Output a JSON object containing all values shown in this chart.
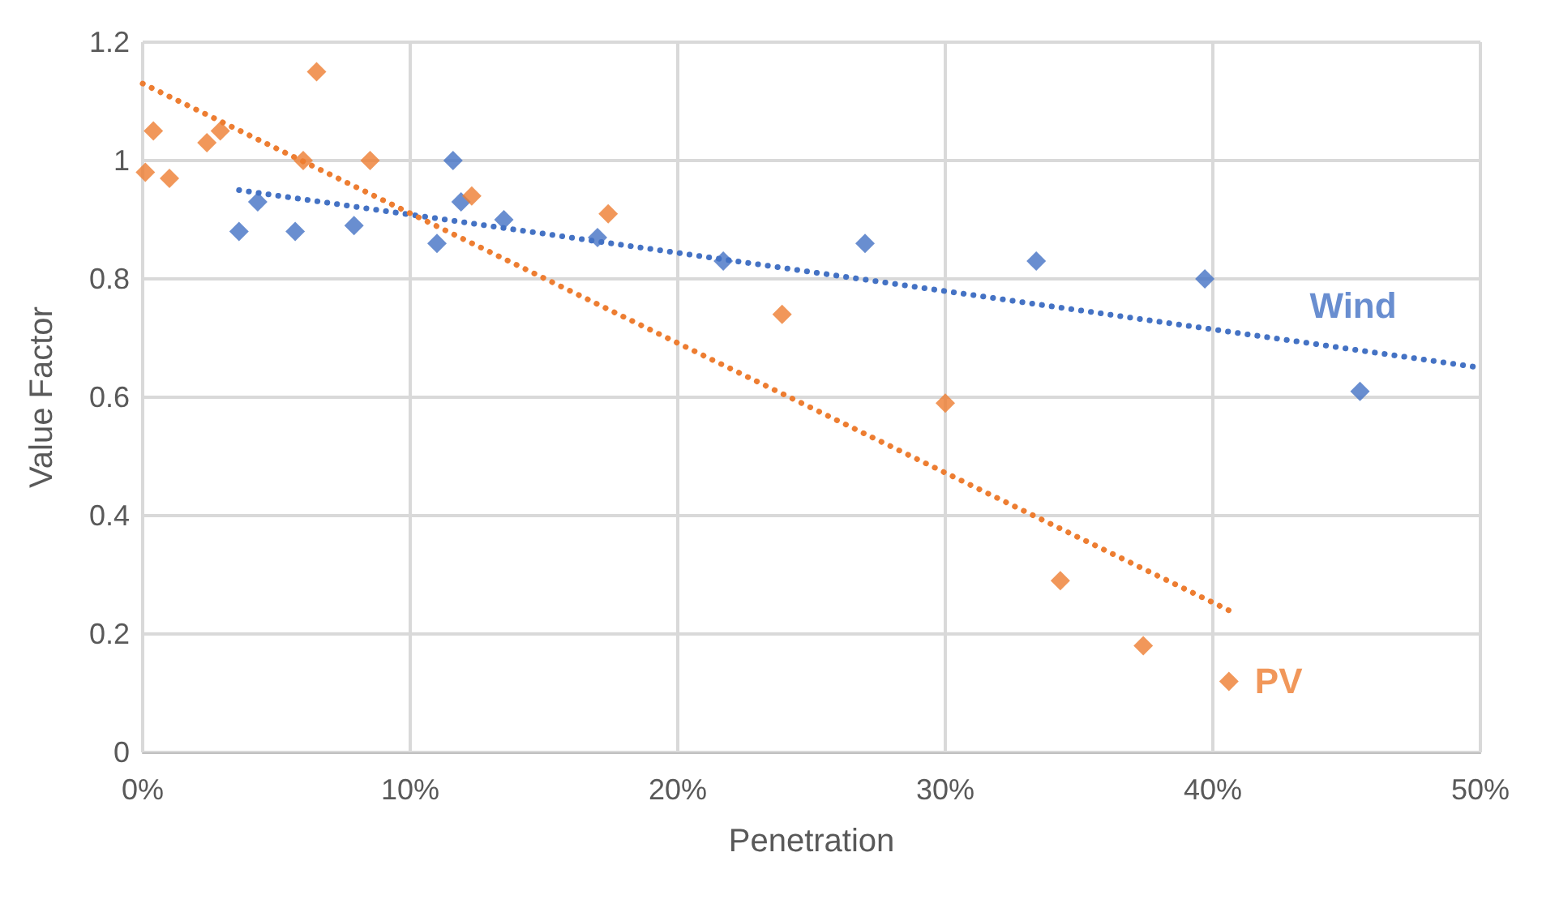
{
  "chart_data": {
    "type": "scatter",
    "xlabel": "Penetration",
    "ylabel": "Value Factor",
    "xlim": [
      0,
      50
    ],
    "ylim": [
      0,
      1.2
    ],
    "xticks": [
      {
        "value": 0,
        "label": "0%"
      },
      {
        "value": 10,
        "label": "10%"
      },
      {
        "value": 20,
        "label": "20%"
      },
      {
        "value": 30,
        "label": "30%"
      },
      {
        "value": 40,
        "label": "40%"
      },
      {
        "value": 50,
        "label": "50%"
      }
    ],
    "yticks": [
      0,
      0.2,
      0.4,
      0.6,
      0.8,
      1,
      1.2
    ],
    "grid": true,
    "marker": "diamond",
    "series": [
      {
        "name": "Wind",
        "color": "#4472c4",
        "x": [
          3.6,
          4.3,
          5.7,
          7.9,
          11.0,
          11.6,
          11.9,
          13.5,
          17.0,
          21.7,
          27.0,
          33.4,
          39.7,
          45.5
        ],
        "values": [
          0.88,
          0.93,
          0.88,
          0.89,
          0.86,
          1.0,
          0.93,
          0.9,
          0.87,
          0.83,
          0.86,
          0.83,
          0.8,
          0.61
        ]
      },
      {
        "name": "PV",
        "color": "#ed7d31",
        "x": [
          0.1,
          0.4,
          1.0,
          2.4,
          2.9,
          6.0,
          6.5,
          8.5,
          12.3,
          17.4,
          23.9,
          30.0,
          34.3,
          37.4,
          40.6
        ],
        "values": [
          0.98,
          1.05,
          0.97,
          1.03,
          1.05,
          1.0,
          1.15,
          1.0,
          0.94,
          0.91,
          0.74,
          0.59,
          0.29,
          0.18,
          0.12
        ]
      },
      {
        "type": "line",
        "color": "#4472c4",
        "line_style": "dotted",
        "marker": "none",
        "x": [
          3.6,
          50
        ],
        "values": [
          0.95,
          0.65
        ]
      },
      {
        "type": "line",
        "color": "#ed7d31",
        "line_style": "dotted",
        "marker": "none",
        "x": [
          0,
          40.6
        ],
        "values": [
          1.13,
          0.24
        ]
      }
    ]
  }
}
